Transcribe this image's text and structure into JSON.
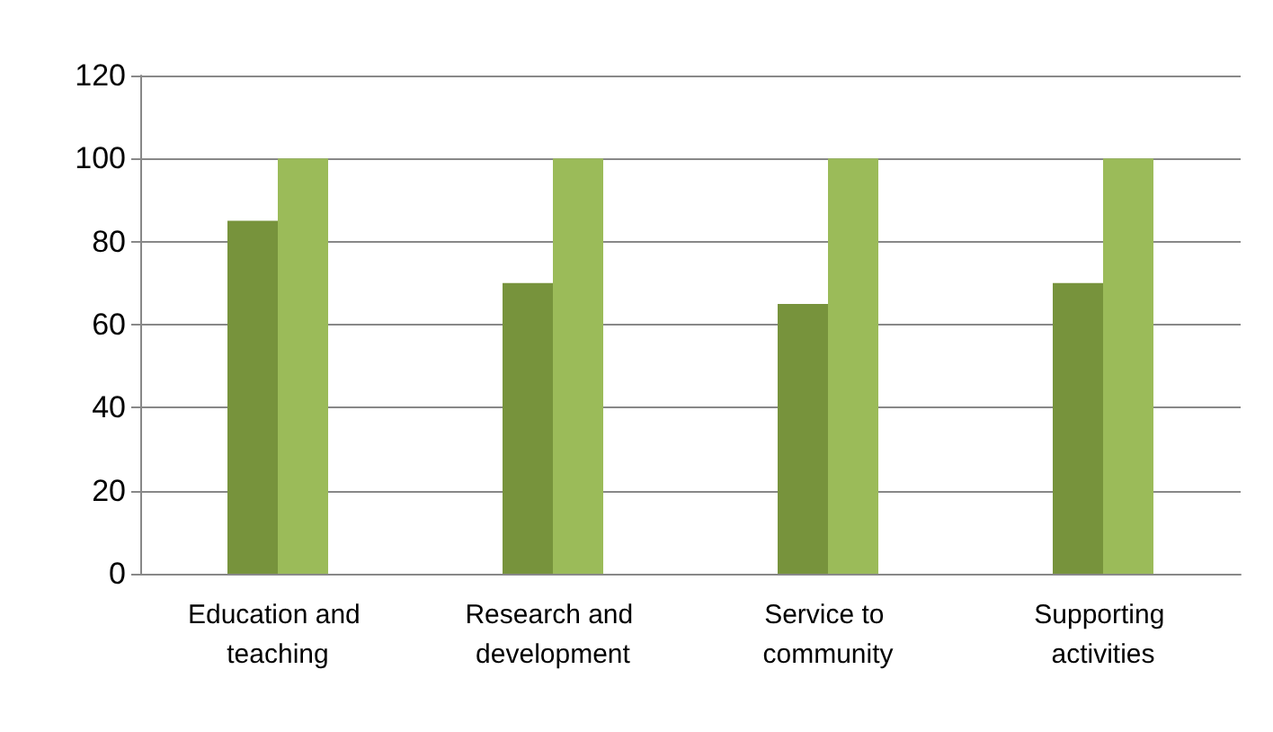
{
  "chart_data": {
    "type": "bar",
    "categories": [
      "Education and teaching",
      "Research and development",
      "Service to community",
      "Supporting activities"
    ],
    "series": [
      {
        "color": "#77933c",
        "values": [
          85,
          70,
          65,
          70
        ]
      },
      {
        "color": "#9bbb59",
        "values": [
          100,
          100,
          100,
          100
        ]
      }
    ],
    "ylim": [
      0,
      120
    ],
    "yticks": [
      0,
      20,
      40,
      60,
      80,
      100,
      120
    ],
    "grid": "y"
  }
}
